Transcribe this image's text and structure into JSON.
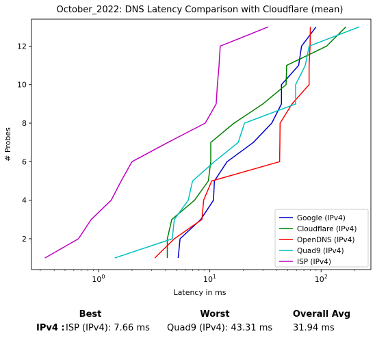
{
  "chart_data": {
    "type": "line",
    "title": "October_2022: DNS Latency Comparison with Cloudflare (mean)",
    "xlabel": "Latency in ms",
    "ylabel": "# Probes",
    "xscale": "log",
    "xlim": [
      0.25,
      280
    ],
    "ylim": [
      0.4,
      13.4
    ],
    "xticks": [
      {
        "value": 1,
        "label": "10",
        "sup": "0"
      },
      {
        "value": 10,
        "label": "10",
        "sup": "1"
      },
      {
        "value": 100,
        "label": "10",
        "sup": "2"
      }
    ],
    "yticks": [
      2,
      4,
      6,
      8,
      10,
      12
    ],
    "legend_position": "lower-right",
    "series": [
      {
        "name": "Google (IPv4)",
        "color": "#0000cc",
        "points": [
          [
            5.2,
            1
          ],
          [
            5.4,
            2
          ],
          [
            8.3,
            3
          ],
          [
            10.8,
            4
          ],
          [
            11.0,
            5
          ],
          [
            14.3,
            6
          ],
          [
            24.6,
            7
          ],
          [
            36.0,
            8
          ],
          [
            44.0,
            9
          ],
          [
            44.0,
            10
          ],
          [
            62.8,
            11
          ],
          [
            66.7,
            12
          ],
          [
            90.0,
            13
          ]
        ]
      },
      {
        "name": "Cloudflare (IPv4)",
        "color": "#008000",
        "points": [
          [
            4.15,
            1
          ],
          [
            4.15,
            2
          ],
          [
            4.55,
            3
          ],
          [
            7.3,
            4
          ],
          [
            9.7,
            5
          ],
          [
            10.2,
            6
          ],
          [
            10.2,
            7
          ],
          [
            16.5,
            8
          ],
          [
            30.0,
            9
          ],
          [
            48.5,
            10
          ],
          [
            49.0,
            11
          ],
          [
            112.0,
            12
          ],
          [
            167.0,
            13
          ]
        ]
      },
      {
        "name": "OpenDNS (IPv4)",
        "color": "#ff0000",
        "points": [
          [
            3.2,
            1
          ],
          [
            4.8,
            2
          ],
          [
            8.5,
            3
          ],
          [
            8.8,
            4
          ],
          [
            10.4,
            5
          ],
          [
            42.4,
            6
          ],
          [
            42.6,
            7
          ],
          [
            42.8,
            8
          ],
          [
            54.8,
            9
          ],
          [
            78.0,
            10
          ],
          [
            78.0,
            11
          ],
          [
            79.5,
            12
          ],
          [
            80.0,
            13
          ]
        ]
      },
      {
        "name": "Quad9 (IPv4)",
        "color": "#00bfbf",
        "points": [
          [
            1.4,
            1
          ],
          [
            4.6,
            2
          ],
          [
            4.8,
            3
          ],
          [
            6.4,
            4
          ],
          [
            7.0,
            5
          ],
          [
            11.0,
            6
          ],
          [
            18.0,
            7
          ],
          [
            20.5,
            8
          ],
          [
            59.0,
            9
          ],
          [
            59.0,
            10
          ],
          [
            72.0,
            11
          ],
          [
            78.0,
            12
          ],
          [
            220.0,
            13
          ]
        ]
      },
      {
        "name": "ISP (IPv4)",
        "color": "#bf00bf",
        "points": [
          [
            0.33,
            1
          ],
          [
            0.66,
            2
          ],
          [
            0.86,
            3
          ],
          [
            1.3,
            4
          ],
          [
            1.6,
            5
          ],
          [
            2.0,
            6
          ],
          [
            4.2,
            7
          ],
          [
            9.1,
            8
          ],
          [
            11.4,
            9
          ],
          [
            11.7,
            10
          ],
          [
            12.1,
            11
          ],
          [
            12.4,
            12
          ],
          [
            33.5,
            13
          ]
        ]
      }
    ]
  },
  "summary": {
    "best_header": "Best",
    "worst_header": "Worst",
    "avg_header": "Overall Avg",
    "row_label": "IPv4 :",
    "best_value": "ISP (IPv4): 7.66 ms",
    "worst_value": "Quad9 (IPv4): 43.31 ms",
    "avg_value": "31.94 ms"
  }
}
